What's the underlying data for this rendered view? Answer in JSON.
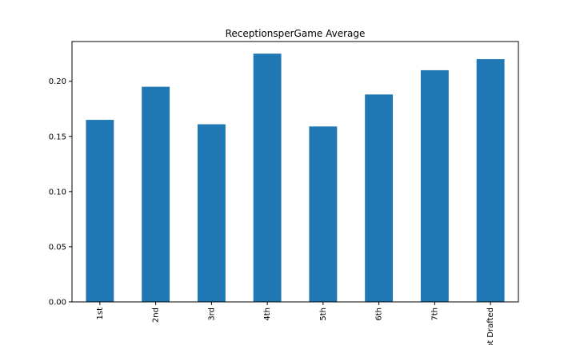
{
  "chart_data": {
    "type": "bar",
    "title": "ReceptionsperGame Average",
    "xlabel": "",
    "ylabel": "",
    "categories": [
      "1st",
      "2nd",
      "3rd",
      "4th",
      "5th",
      "6th",
      "7th",
      "Not Drafted"
    ],
    "values": [
      0.165,
      0.195,
      0.161,
      0.225,
      0.159,
      0.188,
      0.21,
      0.22
    ],
    "ylim": [
      0,
      0.236
    ],
    "yticks": [
      0.0,
      0.05,
      0.1,
      0.15,
      0.2
    ],
    "ytick_labels": [
      "0.00",
      "0.05",
      "0.10",
      "0.15",
      "0.20"
    ],
    "xtick_rotation": 90,
    "grid": false,
    "legend": "none",
    "colors": {
      "bar": "#1f77b4",
      "axis": "#000000",
      "background": "#ffffff"
    }
  }
}
